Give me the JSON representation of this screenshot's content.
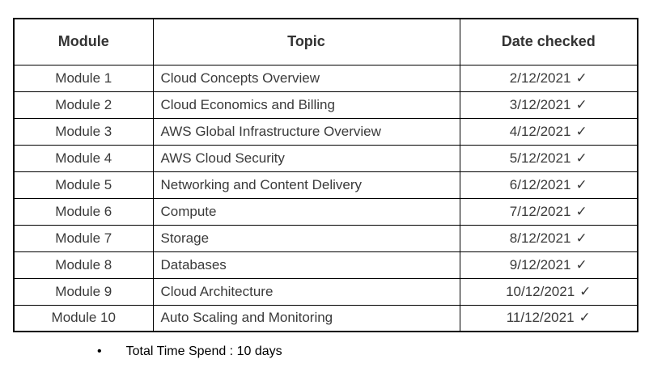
{
  "colors": {
    "background": "#ffffff",
    "border": "#000000",
    "heading_text": "#333333",
    "body_text": "#3a3a3a",
    "note_text": "#000000"
  },
  "table": {
    "headers": [
      "Module",
      "Topic",
      "Date checked"
    ],
    "check_icon": "✓",
    "rows": [
      {
        "module": "Module 1",
        "topic": "Cloud Concepts Overview",
        "date": "2/12/2021"
      },
      {
        "module": "Module 2",
        "topic": "Cloud Economics and Billing",
        "date": "3/12/2021"
      },
      {
        "module": "Module 3",
        "topic": "AWS Global Infrastructure Overview",
        "date": "4/12/2021"
      },
      {
        "module": "Module 4",
        "topic": "AWS Cloud Security",
        "date": "5/12/2021"
      },
      {
        "module": "Module 5",
        "topic": "Networking and Content Delivery",
        "date": "6/12/2021"
      },
      {
        "module": "Module 6",
        "topic": "Compute",
        "date": "7/12/2021"
      },
      {
        "module": "Module 7",
        "topic": "Storage",
        "date": "8/12/2021"
      },
      {
        "module": "Module 8",
        "topic": "Databases",
        "date": "9/12/2021"
      },
      {
        "module": "Module 9",
        "topic": "Cloud Architecture",
        "date": "10/12/2021"
      },
      {
        "module": "Module 10",
        "topic": "Auto Scaling and Monitoring",
        "date": "11/12/2021"
      }
    ]
  },
  "note": {
    "bullet": "•",
    "text": "Total Time Spend : 10 days"
  }
}
